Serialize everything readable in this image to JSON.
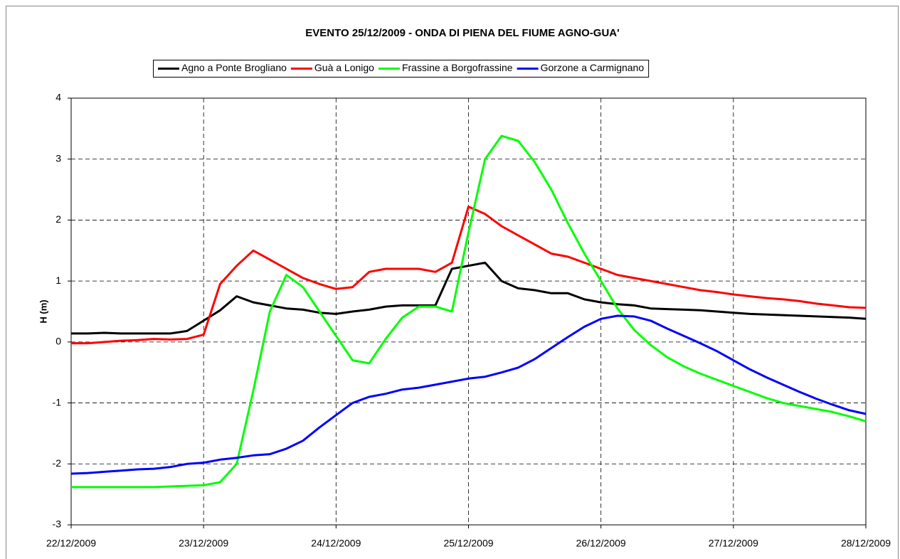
{
  "chart_data": {
    "type": "line",
    "title": "EVENTO 25/12/2009 - ONDA DI PIENA DEL FIUME AGNO-GUA'",
    "y_label": "H (m)",
    "x": [
      0,
      0.125,
      0.25,
      0.375,
      0.5,
      0.625,
      0.75,
      0.875,
      1,
      1.125,
      1.25,
      1.375,
      1.5,
      1.625,
      1.75,
      1.875,
      2,
      2.125,
      2.25,
      2.375,
      2.5,
      2.625,
      2.75,
      2.875,
      3,
      3.125,
      3.25,
      3.375,
      3.5,
      3.625,
      3.75,
      3.875,
      4,
      4.125,
      4.25,
      4.375,
      4.5,
      4.625,
      4.75,
      4.875,
      5,
      5.125,
      5.25,
      5.375,
      5.5,
      5.625,
      5.75,
      5.875,
      6
    ],
    "xlim": [
      0,
      6
    ],
    "xticks": [
      {
        "value": 0,
        "label": "22/12/2009"
      },
      {
        "value": 1,
        "label": "23/12/2009"
      },
      {
        "value": 2,
        "label": "24/12/2009"
      },
      {
        "value": 3,
        "label": "25/12/2009"
      },
      {
        "value": 4,
        "label": "26/12/2009"
      },
      {
        "value": 5,
        "label": "27/12/2009"
      },
      {
        "value": 6,
        "label": "28/12/2009"
      }
    ],
    "ylim": [
      -3,
      4
    ],
    "yticks": [
      -3,
      -2,
      -1,
      0,
      1,
      2,
      3,
      4
    ],
    "grid": true,
    "legend": "top",
    "series": [
      {
        "name": "Agno a Ponte Brogliano",
        "color": "#000000",
        "values": [
          0.14,
          0.14,
          0.15,
          0.14,
          0.14,
          0.14,
          0.14,
          0.18,
          0.35,
          0.52,
          0.75,
          0.65,
          0.6,
          0.55,
          0.53,
          0.48,
          0.46,
          0.5,
          0.53,
          0.58,
          0.6,
          0.6,
          0.6,
          1.2,
          1.25,
          1.3,
          1.0,
          0.88,
          0.85,
          0.8,
          0.8,
          0.7,
          0.65,
          0.62,
          0.6,
          0.55,
          0.54,
          0.53,
          0.52,
          0.5,
          0.48,
          0.46,
          0.45,
          0.44,
          0.43,
          0.42,
          0.41,
          0.4,
          0.38
        ]
      },
      {
        "name": "Guà a Lonigo",
        "color": "#ff0000",
        "values": [
          -0.02,
          -0.02,
          0.0,
          0.02,
          0.03,
          0.05,
          0.04,
          0.05,
          0.12,
          0.95,
          1.25,
          1.5,
          1.35,
          1.2,
          1.05,
          0.95,
          0.87,
          0.9,
          1.15,
          1.2,
          1.2,
          1.2,
          1.15,
          1.3,
          2.22,
          2.1,
          1.9,
          1.75,
          1.6,
          1.45,
          1.4,
          1.3,
          1.2,
          1.1,
          1.05,
          1.0,
          0.95,
          0.9,
          0.85,
          0.82,
          0.78,
          0.75,
          0.72,
          0.7,
          0.67,
          0.63,
          0.6,
          0.57,
          0.56
        ]
      },
      {
        "name": "Frassine a Borgofrassine",
        "color": "#00ff00",
        "values": [
          -2.38,
          -2.38,
          -2.38,
          -2.38,
          -2.38,
          -2.38,
          -2.37,
          -2.36,
          -2.35,
          -2.3,
          -2.0,
          -0.8,
          0.5,
          1.1,
          0.9,
          0.5,
          0.1,
          -0.3,
          -0.35,
          0.05,
          0.4,
          0.58,
          0.58,
          0.5,
          1.8,
          3.0,
          3.38,
          3.3,
          2.95,
          2.5,
          1.95,
          1.45,
          1.0,
          0.55,
          0.2,
          -0.05,
          -0.25,
          -0.4,
          -0.52,
          -0.62,
          -0.72,
          -0.82,
          -0.92,
          -1.0,
          -1.05,
          -1.1,
          -1.15,
          -1.22,
          -1.3
        ]
      },
      {
        "name": "Gorzone a Carmignano",
        "color": "#0000ff",
        "values": [
          -2.16,
          -2.15,
          -2.13,
          -2.11,
          -2.09,
          -2.08,
          -2.05,
          -2.0,
          -1.98,
          -1.93,
          -1.9,
          -1.86,
          -1.84,
          -1.75,
          -1.62,
          -1.4,
          -1.2,
          -1.0,
          -0.9,
          -0.85,
          -0.78,
          -0.75,
          -0.7,
          -0.65,
          -0.6,
          -0.57,
          -0.5,
          -0.42,
          -0.28,
          -0.1,
          0.08,
          0.25,
          0.38,
          0.43,
          0.42,
          0.35,
          0.22,
          0.1,
          -0.02,
          -0.15,
          -0.3,
          -0.45,
          -0.58,
          -0.7,
          -0.82,
          -0.93,
          -1.03,
          -1.12,
          -1.18
        ]
      }
    ]
  }
}
